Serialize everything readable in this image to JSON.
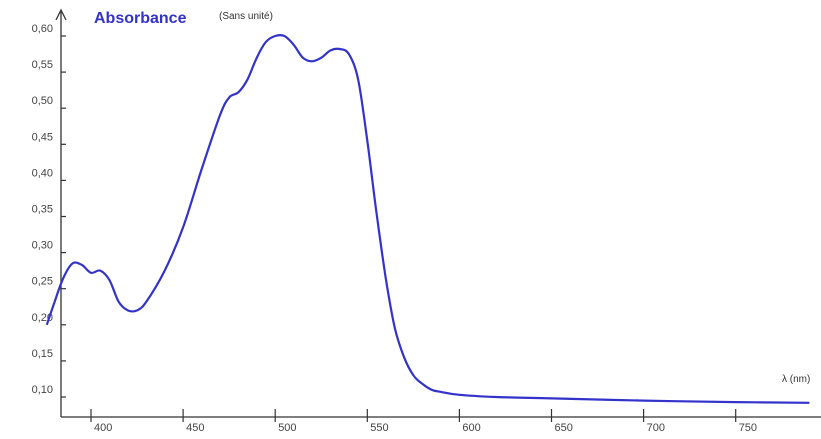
{
  "chart_data": {
    "type": "line",
    "title": "",
    "ylabel": "Absorbance",
    "ylabel_unit": "(Sans unité)",
    "xlabel": "λ (nm)",
    "xlim": [
      375,
      790
    ],
    "ylim": [
      0.07,
      0.62
    ],
    "x_ticks": [
      400,
      450,
      500,
      550,
      600,
      650,
      700,
      750
    ],
    "x_tick_labels": [
      "400",
      "450",
      "500",
      "550",
      "600",
      "650",
      "700",
      "750"
    ],
    "y_ticks": [
      0.1,
      0.15,
      0.2,
      0.25,
      0.3,
      0.35,
      0.4,
      0.45,
      0.5,
      0.55,
      0.6
    ],
    "y_tick_labels": [
      "0,10",
      "0,15",
      "0,20",
      "0,25",
      "0,30",
      "0,35",
      "0,40",
      "0,45",
      "0,50",
      "0,55",
      "0,60"
    ],
    "grid": false,
    "colors": {
      "line": "#3333cc",
      "ylabel": "#3333cc",
      "axis": "#333333"
    },
    "series": [
      {
        "x": [
          376,
          380,
          385,
          390,
          395,
          400,
          405,
          410,
          415,
          420,
          425,
          430,
          440,
          450,
          460,
          470,
          475,
          480,
          485,
          490,
          495,
          500,
          505,
          510,
          515,
          520,
          525,
          530,
          535,
          540,
          545,
          550,
          555,
          560,
          565,
          570,
          575,
          580,
          585,
          590,
          600,
          620,
          650,
          700,
          750,
          790
        ],
        "y": [
          0.2,
          0.23,
          0.265,
          0.285,
          0.283,
          0.272,
          0.275,
          0.262,
          0.232,
          0.22,
          0.22,
          0.232,
          0.275,
          0.335,
          0.415,
          0.49,
          0.515,
          0.522,
          0.54,
          0.57,
          0.592,
          0.6,
          0.6,
          0.588,
          0.57,
          0.565,
          0.57,
          0.58,
          0.582,
          0.575,
          0.54,
          0.455,
          0.355,
          0.265,
          0.195,
          0.155,
          0.13,
          0.118,
          0.11,
          0.107,
          0.103,
          0.1,
          0.098,
          0.095,
          0.093,
          0.092
        ]
      }
    ]
  }
}
